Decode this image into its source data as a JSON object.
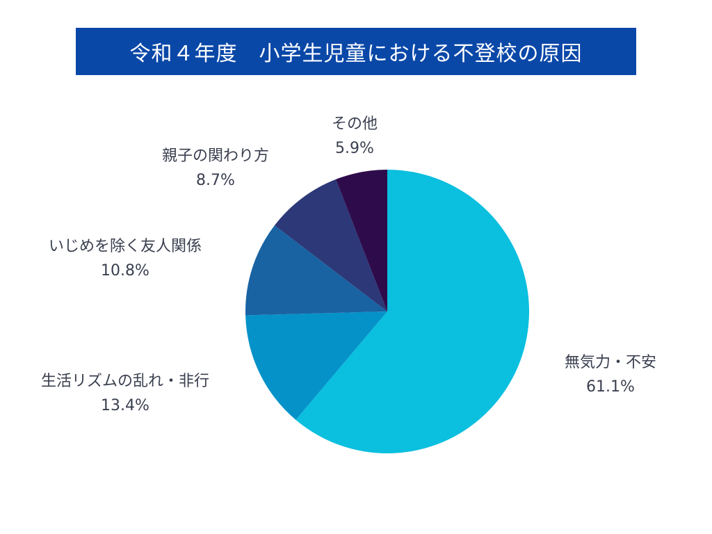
{
  "chart_data": {
    "type": "pie",
    "title": "令和４年度　小学生児童における不登校の原因",
    "start_angle_deg": 0,
    "direction": "clockwise",
    "slices": [
      {
        "label": "無気力・不安",
        "value": 61.1,
        "value_label": "61.1%",
        "color": "#0bbfdf"
      },
      {
        "label": "生活リズムの乱れ・非行",
        "value": 13.4,
        "value_label": "13.4%",
        "color": "#0592c8"
      },
      {
        "label": "いじめを除く友人関係",
        "value": 10.8,
        "value_label": "10.8%",
        "color": "#1963a3"
      },
      {
        "label": "親子の関わり方",
        "value": 8.7,
        "value_label": "8.7%",
        "color": "#2c3878"
      },
      {
        "label": "その他",
        "value": 5.9,
        "value_label": "5.9%",
        "color": "#2e0c4c"
      }
    ]
  }
}
